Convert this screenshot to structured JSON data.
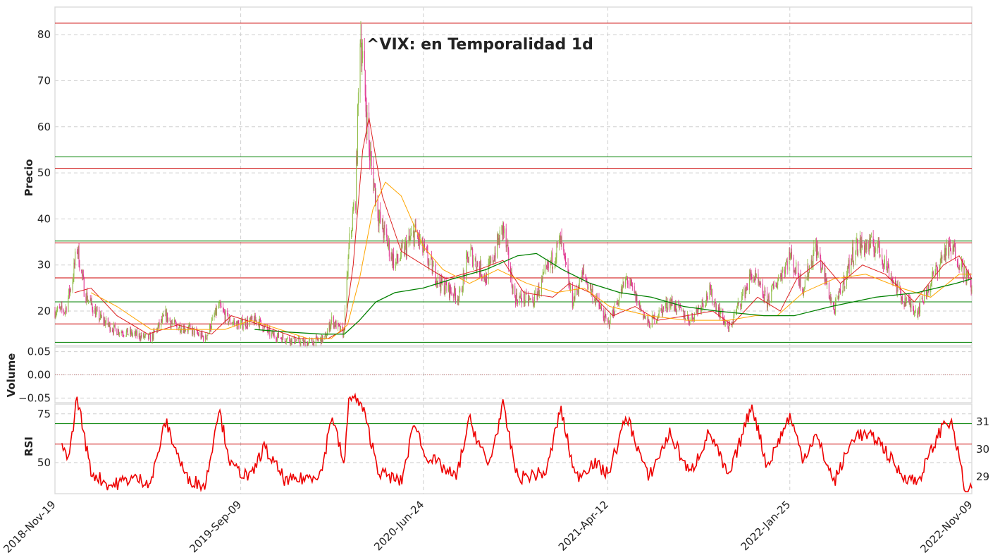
{
  "chart_data": [
    {
      "type": "candlestick",
      "panel": "price",
      "title": "^VIX: en Temporalidad 1d",
      "ylabel": "Precio",
      "ylim": [
        12.5,
        86
      ],
      "yticks": [
        20,
        30,
        40,
        50,
        60,
        70,
        80
      ],
      "grid": true,
      "x_range": [
        "2018-11-19",
        "2022-11-09"
      ],
      "xticks": [
        "2018-Nov-19",
        "2019-Sep-09",
        "2020-Jun-24",
        "2021-Apr-12",
        "2022-Jan-25",
        "2022-Nov-09"
      ],
      "colors": {
        "up": "#8fbc45",
        "down": "#e0338f",
        "ma_fast": "#dd2222",
        "ma_mid": "#ffa500",
        "ma_slow": "#008000",
        "level_red": "#cc0000",
        "level_green": "#008000"
      },
      "close": [
        [
          "2018-11-19",
          20
        ],
        [
          "2018-12-05",
          20
        ],
        [
          "2018-12-17",
          27
        ],
        [
          "2018-12-24",
          34
        ],
        [
          "2019-01-05",
          24
        ],
        [
          "2019-01-25",
          19
        ],
        [
          "2019-02-20",
          16
        ],
        [
          "2019-03-20",
          15
        ],
        [
          "2019-04-20",
          14
        ],
        [
          "2019-05-13",
          19
        ],
        [
          "2019-05-25",
          17
        ],
        [
          "2019-06-20",
          16
        ],
        [
          "2019-07-15",
          14
        ],
        [
          "2019-08-05",
          21
        ],
        [
          "2019-08-20",
          18
        ],
        [
          "2019-09-05",
          17
        ],
        [
          "2019-10-05",
          18
        ],
        [
          "2019-10-25",
          15
        ],
        [
          "2019-11-20",
          14
        ],
        [
          "2019-12-20",
          13
        ],
        [
          "2020-01-20",
          14
        ],
        [
          "2020-01-31",
          18
        ],
        [
          "2020-02-19",
          15
        ],
        [
          "2020-02-28",
          35
        ],
        [
          "2020-03-09",
          45
        ],
        [
          "2020-03-16",
          82
        ],
        [
          "2020-03-30",
          55
        ],
        [
          "2020-04-15",
          40
        ],
        [
          "2020-05-10",
          30
        ],
        [
          "2020-06-11",
          37
        ],
        [
          "2020-06-24",
          33
        ],
        [
          "2020-07-20",
          26
        ],
        [
          "2020-08-20",
          23
        ],
        [
          "2020-09-05",
          33
        ],
        [
          "2020-10-01",
          27
        ],
        [
          "2020-10-28",
          38
        ],
        [
          "2020-11-15",
          23
        ],
        [
          "2020-12-15",
          22
        ],
        [
          "2021-01-27",
          35
        ],
        [
          "2021-02-15",
          22
        ],
        [
          "2021-03-04",
          28
        ],
        [
          "2021-04-12",
          17
        ],
        [
          "2021-05-12",
          27
        ],
        [
          "2021-06-15",
          17
        ],
        [
          "2021-07-19",
          22
        ],
        [
          "2021-08-20",
          18
        ],
        [
          "2021-09-20",
          24
        ],
        [
          "2021-10-20",
          16
        ],
        [
          "2021-11-26",
          28
        ],
        [
          "2021-12-20",
          22
        ],
        [
          "2022-01-25",
          32
        ],
        [
          "2022-02-15",
          25
        ],
        [
          "2022-03-07",
          34
        ],
        [
          "2022-04-05",
          20
        ],
        [
          "2022-05-09",
          34
        ],
        [
          "2022-06-13",
          34
        ],
        [
          "2022-07-20",
          23
        ],
        [
          "2022-08-15",
          20
        ],
        [
          "2022-09-28",
          33
        ],
        [
          "2022-10-13",
          33
        ],
        [
          "2022-11-09",
          25
        ]
      ],
      "moving_averages": [
        {
          "name": "",
          "color": "#dd2222",
          "points": [
            [
              "2018-12-20",
              24
            ],
            [
              "2019-01-15",
              25
            ],
            [
              "2019-02-25",
              19
            ],
            [
              "2019-04-15",
              15
            ],
            [
              "2019-06-01",
              17
            ],
            [
              "2019-07-25",
              15
            ],
            [
              "2019-08-25",
              19
            ],
            [
              "2019-10-10",
              17
            ],
            [
              "2019-12-10",
              14
            ],
            [
              "2020-01-25",
              14
            ],
            [
              "2020-02-20",
              16
            ],
            [
              "2020-03-05",
              30
            ],
            [
              "2020-03-20",
              55
            ],
            [
              "2020-03-30",
              62
            ],
            [
              "2020-04-20",
              45
            ],
            [
              "2020-05-20",
              33
            ],
            [
              "2020-06-24",
              30
            ],
            [
              "2020-07-30",
              27
            ],
            [
              "2020-09-20",
              29
            ],
            [
              "2020-10-28",
              31
            ],
            [
              "2020-11-30",
              24
            ],
            [
              "2021-01-15",
              23
            ],
            [
              "2021-02-10",
              26
            ],
            [
              "2021-03-15",
              24
            ],
            [
              "2021-04-20",
              19
            ],
            [
              "2021-05-25",
              21
            ],
            [
              "2021-06-30",
              18
            ],
            [
              "2021-08-15",
              19
            ],
            [
              "2021-09-25",
              20
            ],
            [
              "2021-10-25",
              17
            ],
            [
              "2021-12-05",
              23
            ],
            [
              "2022-01-10",
              20
            ],
            [
              "2022-02-05",
              27
            ],
            [
              "2022-03-15",
              31
            ],
            [
              "2022-04-15",
              26
            ],
            [
              "2022-05-20",
              30
            ],
            [
              "2022-06-25",
              28
            ],
            [
              "2022-08-10",
              22
            ],
            [
              "2022-09-25",
              30
            ],
            [
              "2022-10-20",
              32
            ],
            [
              "2022-11-09",
              27
            ]
          ]
        },
        {
          "name": "",
          "color": "#ffa500",
          "points": [
            [
              "2019-01-15",
              24
            ],
            [
              "2019-02-25",
              21
            ],
            [
              "2019-04-20",
              16
            ],
            [
              "2019-06-20",
              16
            ],
            [
              "2019-08-15",
              16
            ],
            [
              "2019-09-25",
              18
            ],
            [
              "2019-11-10",
              16
            ],
            [
              "2019-12-25",
              14
            ],
            [
              "2020-01-30",
              14
            ],
            [
              "2020-02-25",
              17
            ],
            [
              "2020-03-15",
              27
            ],
            [
              "2020-04-05",
              42
            ],
            [
              "2020-04-25",
              48
            ],
            [
              "2020-05-20",
              45
            ],
            [
              "2020-06-24",
              34
            ],
            [
              "2020-07-25",
              29
            ],
            [
              "2020-09-05",
              26
            ],
            [
              "2020-10-20",
              29
            ],
            [
              "2020-12-05",
              26
            ],
            [
              "2021-01-20",
              24
            ],
            [
              "2021-03-05",
              25
            ],
            [
              "2021-04-15",
              21
            ],
            [
              "2021-06-15",
              19
            ],
            [
              "2021-08-15",
              18
            ],
            [
              "2021-10-20",
              18
            ],
            [
              "2021-12-01",
              19
            ],
            [
              "2022-01-05",
              19
            ],
            [
              "2022-02-15",
              24
            ],
            [
              "2022-04-05",
              27
            ],
            [
              "2022-05-25",
              28
            ],
            [
              "2022-07-20",
              25
            ],
            [
              "2022-09-05",
              23
            ],
            [
              "2022-10-20",
              28
            ],
            [
              "2022-11-09",
              28
            ]
          ]
        },
        {
          "name": "",
          "color": "#008000",
          "points": [
            [
              "2019-10-01",
              16
            ],
            [
              "2019-11-15",
              15.5
            ],
            [
              "2020-01-15",
              15
            ],
            [
              "2020-02-20",
              15
            ],
            [
              "2020-03-15",
              18
            ],
            [
              "2020-04-10",
              22
            ],
            [
              "2020-05-10",
              24
            ],
            [
              "2020-06-24",
              25
            ],
            [
              "2020-08-10",
              27
            ],
            [
              "2020-10-01",
              29
            ],
            [
              "2020-11-20",
              32
            ],
            [
              "2020-12-20",
              32.5
            ],
            [
              "2021-01-30",
              29
            ],
            [
              "2021-03-15",
              26
            ],
            [
              "2021-05-01",
              24
            ],
            [
              "2021-06-20",
              23
            ],
            [
              "2021-08-10",
              21
            ],
            [
              "2021-10-01",
              20
            ],
            [
              "2021-12-15",
              19
            ],
            [
              "2022-02-01",
              19
            ],
            [
              "2022-04-01",
              21
            ],
            [
              "2022-06-10",
              23
            ],
            [
              "2022-08-15",
              24
            ],
            [
              "2022-10-15",
              26
            ],
            [
              "2022-11-09",
              27
            ]
          ]
        }
      ],
      "horizontal_levels": [
        {
          "value": 82.5,
          "color": "#cc0000"
        },
        {
          "value": 53.5,
          "color": "#008000"
        },
        {
          "value": 51,
          "color": "#cc0000"
        },
        {
          "value": 35.2,
          "color": "#008000"
        },
        {
          "value": 34.8,
          "color": "#cc0000"
        },
        {
          "value": 27.2,
          "color": "#cc0000"
        },
        {
          "value": 22,
          "color": "#008000"
        },
        {
          "value": 17.2,
          "color": "#cc0000"
        },
        {
          "value": 13.2,
          "color": "#008000"
        }
      ]
    },
    {
      "type": "bar",
      "panel": "volume",
      "ylabel": "Volume",
      "ylim": [
        -0.06,
        0.06
      ],
      "yticks": [
        "0.05",
        "0.00",
        "−0.05"
      ],
      "values": "all zero"
    },
    {
      "type": "line",
      "panel": "rsi",
      "ylabel": "RSI",
      "ylim": [
        34,
        80
      ],
      "yticks": [
        50,
        75
      ],
      "right_labels": [
        "31",
        "30",
        "29"
      ],
      "color": "#ee0000",
      "levels": [
        {
          "value": 70,
          "color": "#008000"
        },
        {
          "value": 59.5,
          "color": "#cc0000"
        }
      ],
      "points": [
        [
          "2018-11-30",
          57
        ],
        [
          "2018-12-12",
          54
        ],
        [
          "2018-12-24",
          84
        ],
        [
          "2019-01-15",
          45
        ],
        [
          "2019-02-15",
          38
        ],
        [
          "2019-03-20",
          42
        ],
        [
          "2019-04-20",
          40
        ],
        [
          "2019-05-13",
          71
        ],
        [
          "2019-06-15",
          42
        ],
        [
          "2019-07-15",
          38
        ],
        [
          "2019-08-05",
          78
        ],
        [
          "2019-08-25",
          48
        ],
        [
          "2019-09-25",
          42
        ],
        [
          "2019-10-15",
          58
        ],
        [
          "2019-11-20",
          40
        ],
        [
          "2019-12-20",
          42
        ],
        [
          "2020-01-15",
          45
        ],
        [
          "2020-01-31",
          75
        ],
        [
          "2020-02-20",
          48
        ],
        [
          "2020-02-28",
          86
        ],
        [
          "2020-03-20",
          78
        ],
        [
          "2020-04-15",
          45
        ],
        [
          "2020-05-20",
          40
        ],
        [
          "2020-06-11",
          72
        ],
        [
          "2020-06-24",
          55
        ],
        [
          "2020-08-15",
          42
        ],
        [
          "2020-09-05",
          72
        ],
        [
          "2020-10-05",
          48
        ],
        [
          "2020-10-28",
          79
        ],
        [
          "2020-11-20",
          42
        ],
        [
          "2021-01-05",
          45
        ],
        [
          "2021-01-27",
          78
        ],
        [
          "2021-02-20",
          42
        ],
        [
          "2021-03-20",
          50
        ],
        [
          "2021-04-12",
          44
        ],
        [
          "2021-05-12",
          74
        ],
        [
          "2021-06-15",
          42
        ],
        [
          "2021-07-19",
          65
        ],
        [
          "2021-08-20",
          44
        ],
        [
          "2021-09-20",
          66
        ],
        [
          "2021-10-20",
          42
        ],
        [
          "2021-11-26",
          80
        ],
        [
          "2021-12-20",
          48
        ],
        [
          "2022-01-25",
          74
        ],
        [
          "2022-02-15",
          52
        ],
        [
          "2022-03-07",
          64
        ],
        [
          "2022-04-05",
          40
        ],
        [
          "2022-05-09",
          65
        ],
        [
          "2022-06-13",
          62
        ],
        [
          "2022-07-20",
          44
        ],
        [
          "2022-08-15",
          40
        ],
        [
          "2022-09-28",
          72
        ],
        [
          "2022-10-10",
          68
        ],
        [
          "2022-10-25",
          44
        ],
        [
          "2022-11-01",
          30
        ],
        [
          "2022-11-09",
          38
        ]
      ]
    }
  ]
}
